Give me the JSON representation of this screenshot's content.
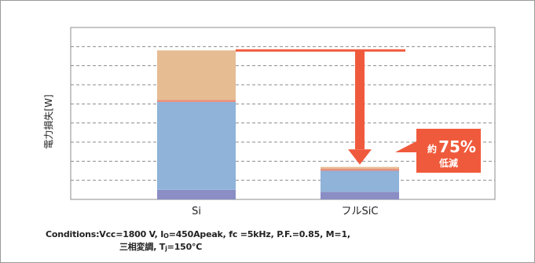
{
  "chart_data": {
    "type": "bar",
    "stacked": true,
    "categories": [
      "Si",
      "フルSiC"
    ],
    "ylabel": "電力損失[W]",
    "ylim": [
      0,
      9
    ],
    "grid": true,
    "series": [
      {
        "values": [
          0.5,
          0.4
        ]
      },
      {
        "values": [
          4.6,
          1.1
        ]
      },
      {
        "values": [
          0.1,
          0.1
        ]
      },
      {
        "values": [
          2.6,
          0.1
        ]
      }
    ],
    "colors": [
      "#8a8ec4",
      "#8fb3d9",
      "#e98c7a",
      "#e6bc93"
    ],
    "annotation": {
      "prefix": "約",
      "value": "75%",
      "suffix": "低減",
      "color": "#f05a3c"
    }
  },
  "conditions": {
    "line1_a": "Conditions:Vcc=1800 V, I",
    "line1_sub": "O",
    "line1_b": "=450Apeak, fc =5kHz, P.F.=0.85, M=1,",
    "line2_a": "三相変調, T",
    "line2_sub": "j",
    "line2_b": "=150℃"
  }
}
